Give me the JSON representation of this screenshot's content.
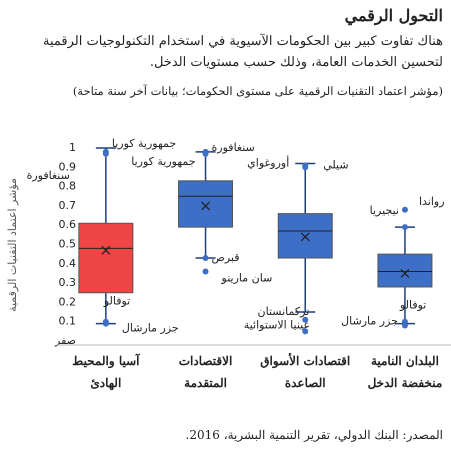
{
  "chart_data": {
    "type": "box",
    "title": "التحول الرقمي",
    "subtitle": "هناك تفاوت كبير بين الحكومات الآسيوية في استخدام التكنولوجيات الرقمية لتحسين الخدمات العامة، وذلك حسب مستويات الدخل.",
    "note": "(مؤشر اعتماد التقنيات الرقمية على مستوى الحكومات؛ بيانات آخر سنة متاحة)",
    "ylabel": "مؤشر اعتماد التقنيات الرقمية",
    "source": "المصدر: البنك الدولي، تقرير التنمية البشرية، 2016.",
    "ylim": [
      0,
      1
    ],
    "yticks": [
      {
        "value": 0,
        "label": "صفر"
      },
      0.1,
      0.2,
      0.3,
      0.4,
      0.5,
      0.6,
      0.7,
      0.8,
      0.9,
      1
    ],
    "categories": [
      "آسيا والمحيط الهادئ",
      "الاقتصادات المتقدمة",
      "اقتصادات الأسواق الصاعدة",
      "البلدان النامية منخفضة الدخل"
    ],
    "boxes": [
      {
        "color": "#f04545",
        "whisker_high": 1.0,
        "q3": 0.61,
        "median": 0.48,
        "q1": 0.25,
        "whisker_low": 0.09,
        "mean": 0.47,
        "points": [
          {
            "value": 0.98,
            "label": "جمهورية كوريا"
          },
          {
            "value": 0.97,
            "label": "سنغافورة"
          },
          {
            "value": 0.1,
            "label": "توفالو"
          },
          {
            "value": 0.09,
            "label": "جزر مارشال"
          }
        ]
      },
      {
        "color": "#3d6fc6",
        "whisker_high": 0.98,
        "q3": 0.83,
        "median": 0.75,
        "q1": 0.59,
        "whisker_low": 0.43,
        "mean": 0.7,
        "points": [
          {
            "value": 0.98,
            "label": "سنغافورة"
          },
          {
            "value": 0.97,
            "label": "جمهورية كوريا"
          },
          {
            "value": 0.43,
            "label": "قبرص"
          },
          {
            "value": 0.36,
            "label": "سان مارينو"
          }
        ]
      },
      {
        "color": "#3d6fc6",
        "whisker_high": 0.92,
        "q3": 0.66,
        "median": 0.57,
        "q1": 0.43,
        "whisker_low": 0.15,
        "mean": 0.54,
        "points": [
          {
            "value": 0.91,
            "label": "شيلي"
          },
          {
            "value": 0.9,
            "label": "أوروغواي"
          },
          {
            "value": 0.11,
            "label": "تركمانستان"
          },
          {
            "value": 0.05,
            "label": "غينيا الاستوائية"
          }
        ]
      },
      {
        "color": "#3d6fc6",
        "whisker_high": 0.59,
        "q3": 0.45,
        "median": 0.36,
        "q1": 0.28,
        "whisker_low": 0.09,
        "mean": 0.35,
        "points": [
          {
            "value": 0.68,
            "label": "رواندا"
          },
          {
            "value": 0.59,
            "label": "نيجيريا"
          },
          {
            "value": 0.1,
            "label": "توفالو"
          },
          {
            "value": 0.08,
            "label": "جزر مارشال"
          }
        ]
      }
    ]
  }
}
